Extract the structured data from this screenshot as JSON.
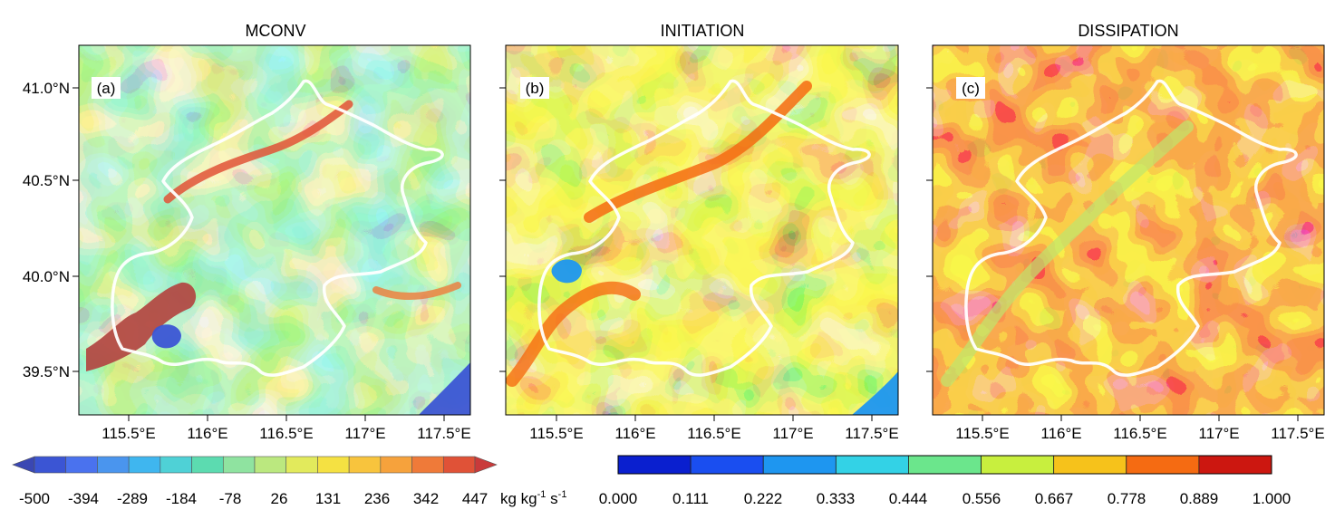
{
  "chart_data": [
    {
      "type": "heatmap",
      "title": "MCONV",
      "label": "(a)",
      "x_ticks": [
        "115.5°E",
        "116°E",
        "116.5°E",
        "117°E",
        "117.5°E"
      ],
      "y_ticks": [
        "41.0°N",
        "40.5°N",
        "40.0°N",
        "39.5°N"
      ],
      "colorbar": {
        "labels": [
          "-500",
          "-394",
          "-289",
          "-184",
          "-78",
          "26",
          "131",
          "236",
          "342",
          "447"
        ],
        "unit": "kg kg",
        "unit_sup1": "-1",
        "unit_mid": " s",
        "unit_sup2": "-1",
        "colors": [
          "#3a47b3",
          "#3b55d4",
          "#4a72ee",
          "#4a95ee",
          "#3fb6ef",
          "#4fd1d6",
          "#5cdbb0",
          "#8fe3a0",
          "#bbe87f",
          "#e2ea5c",
          "#f5e142",
          "#f8c43d",
          "#f6a23c",
          "#ef7a39",
          "#e05237",
          "#c93a3a"
        ]
      }
    },
    {
      "type": "heatmap",
      "title": "INITIATION",
      "label": "(b)",
      "x_ticks": [
        "115.5°E",
        "116°E",
        "116.5°E",
        "117°E",
        "117.5°E"
      ]
    },
    {
      "type": "heatmap",
      "title": "DISSIPATION",
      "label": "(c)",
      "x_ticks": [
        "115.5°E",
        "116°E",
        "116.5°E",
        "117°E",
        "117.5°E"
      ],
      "colorbar": {
        "labels": [
          "0.000",
          "0.111",
          "0.222",
          "0.333",
          "0.444",
          "0.556",
          "0.667",
          "0.778",
          "0.889",
          "1.000"
        ],
        "colors": [
          "#0a1fcf",
          "#1a4ef0",
          "#1e96f0",
          "#33d2e6",
          "#6be68c",
          "#c8ef3e",
          "#f6c21b",
          "#f56b12",
          "#cc1710"
        ]
      }
    }
  ]
}
